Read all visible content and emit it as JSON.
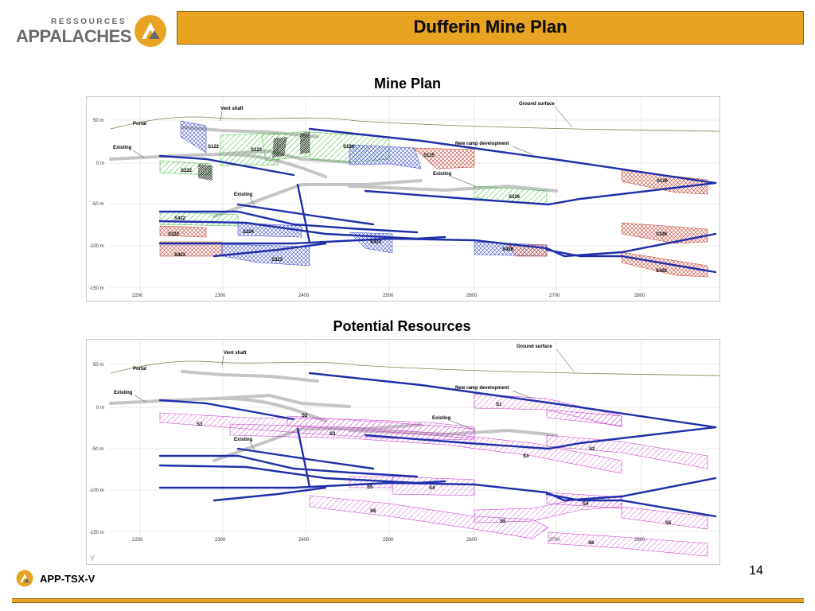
{
  "logo": {
    "top_word": "RESSOURCES",
    "main_word": "APPALACHES"
  },
  "title": "Dufferin Mine Plan",
  "section1": {
    "title": "Mine Plan",
    "y_ticks": [
      "50 m",
      "0 m",
      "-50 m",
      "-100 m",
      "-150 m"
    ],
    "x_ticks": [
      "2200",
      "2300",
      "2400",
      "2500",
      "2600",
      "2700",
      "2800"
    ],
    "labels": {
      "vent_shaft": "Vent shaft",
      "ground_surface": "Ground surface",
      "portal": "Portal",
      "existing1": "Existing",
      "existing2": "Existing",
      "existing3": "Existing",
      "new_ramp": "New ramp development",
      "s122": "S122",
      "s123": "S123",
      "s124": "S124",
      "s125": "S125",
      "s126": "S126",
      "s222": "S222",
      "s226": "S226",
      "s422": "S422",
      "s322": "S322",
      "s323": "S323",
      "s324": "S324",
      "s326": "S326",
      "s423": "S423",
      "s424": "S424",
      "s426": "S426",
      "s428": "S428"
    }
  },
  "section2": {
    "title": "Potential Resources",
    "y_ticks": [
      "50 m",
      "0 m",
      "-50 m",
      "-100 m",
      "-150 m"
    ],
    "x_ticks": [
      "2200",
      "2300",
      "2400",
      "2500",
      "2600",
      "2700",
      "2800"
    ],
    "labels": {
      "vent_shaft": "Vent shaft",
      "ground_surface": "Ground surface",
      "portal": "Portal",
      "existing1": "Existing",
      "existing2": "Existing",
      "existing3": "Existing",
      "new_ramp": "New ramp development",
      "s1": "S1",
      "s2a": "S2",
      "s2b": "S2",
      "s3a": "S3",
      "s3b": "S3",
      "s3c": "S3",
      "s4a": "S4",
      "s4b": "S4",
      "s5a": "S5",
      "s5b": "S5",
      "s5c": "S5",
      "s6a": "S6",
      "s6b": "S6",
      "corner": "Y"
    }
  },
  "page_number": "14",
  "footer": {
    "ticker": "APP-TSX-V"
  },
  "colors": {
    "accent": "#e8a321",
    "ramp": "#1f2ea8",
    "existing": "#bdbdbd",
    "green": "#2fb82f",
    "red": "#c0392b",
    "blue": "#3a46c7",
    "magenta": "#c83ec8"
  }
}
